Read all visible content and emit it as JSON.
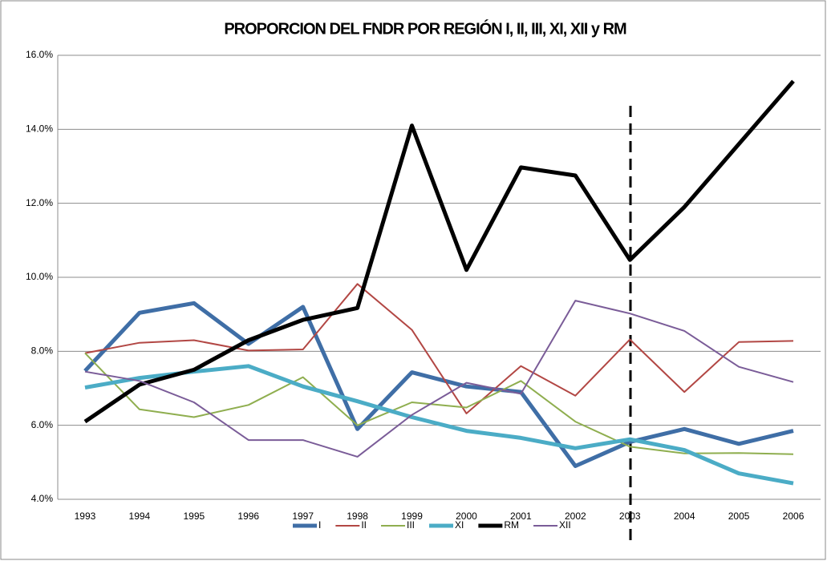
{
  "chart_data": {
    "type": "line",
    "title": "PROPORCION DEL FNDR POR REGIÓN I, II, III, XI, XII y RM",
    "categories": [
      "1993",
      "1994",
      "1995",
      "1996",
      "1997",
      "1998",
      "1999",
      "2000",
      "2001",
      "2002",
      "2003",
      "2004",
      "2005",
      "2006"
    ],
    "series": [
      {
        "name": "I",
        "color": "#3f6ea6",
        "values": [
          7.47,
          9.04,
          9.3,
          8.2,
          9.2,
          5.9,
          7.43,
          7.05,
          6.9,
          4.9,
          5.55,
          5.9,
          5.5,
          5.85
        ]
      },
      {
        "name": "II",
        "color": "#b24744",
        "values": [
          7.95,
          8.23,
          8.3,
          8.02,
          8.05,
          9.82,
          8.58,
          6.32,
          7.6,
          6.8,
          8.32,
          6.9,
          8.25,
          8.28
        ]
      },
      {
        "name": "III",
        "color": "#8fae4f",
        "values": [
          7.95,
          6.43,
          6.22,
          6.55,
          7.3,
          6.0,
          6.62,
          6.48,
          7.2,
          6.1,
          5.42,
          5.24,
          5.25,
          5.22
        ]
      },
      {
        "name": "XI",
        "color": "#4bacc6",
        "values": [
          7.02,
          7.28,
          7.45,
          7.6,
          7.05,
          6.65,
          6.22,
          5.85,
          5.66,
          5.38,
          5.62,
          5.33,
          4.7,
          4.43
        ]
      },
      {
        "name": "RM",
        "color": "#000000",
        "values": [
          6.1,
          7.1,
          7.5,
          8.3,
          8.85,
          9.17,
          14.1,
          10.2,
          12.97,
          12.75,
          10.47,
          11.9,
          13.6,
          15.3
        ]
      },
      {
        "name": "XII",
        "color": "#7a5c98",
        "values": [
          7.45,
          7.2,
          6.62,
          5.6,
          5.6,
          5.15,
          6.28,
          7.15,
          6.85,
          9.37,
          9.02,
          8.55,
          7.58,
          7.17
        ]
      }
    ],
    "ylim": [
      4,
      16
    ],
    "yticks": [
      {
        "value": 4,
        "label": "4.0%"
      },
      {
        "value": 6,
        "label": "6.0%"
      },
      {
        "value": 8,
        "label": "8.0%"
      },
      {
        "value": 10,
        "label": "10.0%"
      },
      {
        "value": 12,
        "label": "12.0%"
      },
      {
        "value": 14,
        "label": "14.0%"
      },
      {
        "value": 16,
        "label": "16.0%"
      }
    ],
    "grid": true,
    "legend": "bottom"
  }
}
